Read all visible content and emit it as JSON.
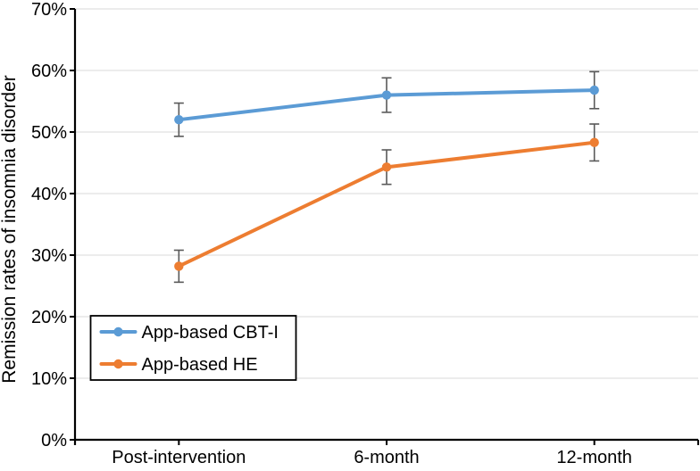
{
  "figure": {
    "background": "#ffffff"
  },
  "chart_data": {
    "type": "line",
    "title": "",
    "xlabel": "",
    "ylabel": "Remission rates of insomnia disorder",
    "categories": [
      "Post-intervention",
      "6-month",
      "12-month"
    ],
    "series": [
      {
        "name": "App-based CBT-I",
        "color": "#5B9BD5",
        "values": [
          52.0,
          56.0,
          56.8
        ],
        "error_bars": [
          2.7,
          2.8,
          3.0
        ]
      },
      {
        "name": "App-based HE",
        "color": "#ED7D31",
        "values": [
          28.2,
          44.3,
          48.3
        ],
        "error_bars": [
          2.6,
          2.8,
          3.0
        ]
      }
    ],
    "ylim": [
      0,
      70
    ],
    "ytick_step": 10,
    "ytick_labels": [
      "0%",
      "10%",
      "20%",
      "30%",
      "40%",
      "50%",
      "60%",
      "70%"
    ],
    "grid": true,
    "gridline_color": "#D9D9D9",
    "axis_color": "#000000",
    "error_bar_color": "#595959",
    "legend": {
      "position": "inside-lower-left",
      "entries": [
        "App-based CBT-I",
        "App-based HE"
      ],
      "border_color": "#000000",
      "background": "#ffffff"
    }
  }
}
